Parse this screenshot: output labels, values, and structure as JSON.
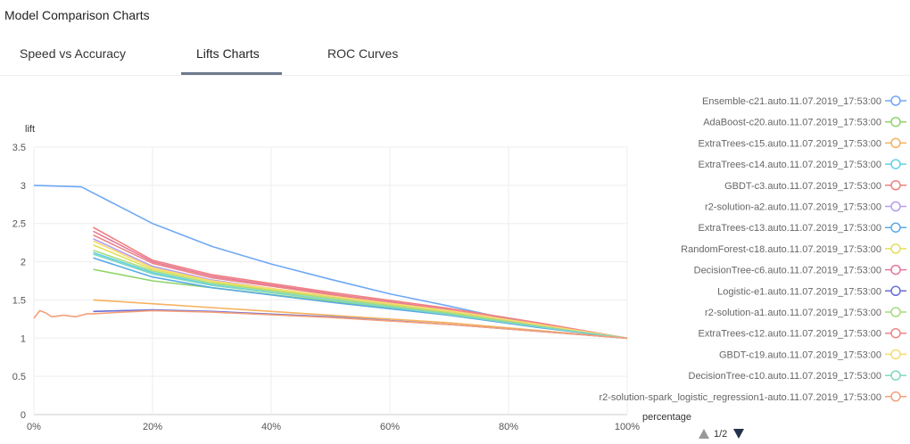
{
  "page": {
    "title": "Model Comparison Charts"
  },
  "tabs": [
    {
      "label": "Speed vs Accuracy",
      "active": false
    },
    {
      "label": "Lifts Charts",
      "active": true
    },
    {
      "label": "ROC Curves",
      "active": false
    }
  ],
  "chart_data": {
    "type": "line",
    "xlabel": "percentage",
    "ylabel": "lift",
    "xlim": [
      0,
      1
    ],
    "ylim": [
      0,
      3.5
    ],
    "x_ticks": [
      "0%",
      "20%",
      "40%",
      "60%",
      "80%",
      "100%"
    ],
    "y_ticks": [
      "0",
      "0.5",
      "1",
      "1.5",
      "2",
      "2.5",
      "3",
      "3.5"
    ],
    "grid": true,
    "legend_position": "right",
    "series": [
      {
        "name": "Ensemble-c21.auto.11.07.2019_17:53:00",
        "color": "#6fa8f5",
        "x": [
          0,
          0.08,
          0.1,
          0.15,
          0.2,
          0.3,
          0.4,
          0.5,
          0.6,
          0.7,
          0.8,
          0.9,
          1.0
        ],
        "y": [
          3.0,
          2.98,
          2.9,
          2.7,
          2.5,
          2.2,
          1.97,
          1.77,
          1.58,
          1.42,
          1.25,
          1.1,
          1.0
        ]
      },
      {
        "name": "AdaBoost-c20.auto.11.07.2019_17:53:00",
        "color": "#8fd46a",
        "x": [
          0.1,
          0.2,
          0.3,
          0.5,
          0.7,
          0.85,
          1.0
        ],
        "y": [
          1.9,
          1.75,
          1.66,
          1.48,
          1.3,
          1.15,
          1.0
        ]
      },
      {
        "name": "ExtraTrees-c15.auto.11.07.2019_17:53:00",
        "color": "#f5b25f",
        "x": [
          0.1,
          0.2,
          0.3,
          0.5,
          0.7,
          0.85,
          1.0
        ],
        "y": [
          1.5,
          1.45,
          1.4,
          1.3,
          1.2,
          1.1,
          1.0
        ]
      },
      {
        "name": "ExtraTrees-c14.auto.11.07.2019_17:53:00",
        "color": "#62d0e8",
        "x": [
          0.1,
          0.2,
          0.3,
          0.5,
          0.7,
          0.85,
          1.0
        ],
        "y": [
          2.12,
          1.86,
          1.7,
          1.5,
          1.32,
          1.15,
          1.0
        ]
      },
      {
        "name": "GBDT-c3.auto.11.07.2019_17:53:00",
        "color": "#f08080",
        "x": [
          0.1,
          0.2,
          0.3,
          0.5,
          0.7,
          0.85,
          1.0
        ],
        "y": [
          2.45,
          2.02,
          1.83,
          1.6,
          1.39,
          1.2,
          1.0
        ]
      },
      {
        "name": "r2-solution-a2.auto.11.07.2019_17:53:00",
        "color": "#b69cf0",
        "x": [
          0.1,
          0.2,
          0.3,
          0.5,
          0.7,
          0.85,
          1.0
        ],
        "y": [
          2.3,
          1.94,
          1.76,
          1.54,
          1.34,
          1.16,
          1.0
        ]
      },
      {
        "name": "ExtraTrees-c13.auto.11.07.2019_17:53:00",
        "color": "#5aa9e6",
        "x": [
          0.1,
          0.2,
          0.3,
          0.5,
          0.7,
          0.85,
          1.0
        ],
        "y": [
          2.05,
          1.8,
          1.66,
          1.47,
          1.3,
          1.14,
          1.0
        ]
      },
      {
        "name": "RandomForest-c18.auto.11.07.2019_17:53:00",
        "color": "#e3e05a",
        "x": [
          0.1,
          0.2,
          0.3,
          0.5,
          0.7,
          0.85,
          1.0
        ],
        "y": [
          2.22,
          1.9,
          1.74,
          1.53,
          1.34,
          1.16,
          1.0
        ]
      },
      {
        "name": "DecisionTree-c6.auto.11.07.2019_17:53:00",
        "color": "#e7769a",
        "x": [
          0.1,
          0.2,
          0.3,
          0.5,
          0.7,
          0.85,
          1.0
        ],
        "y": [
          2.4,
          2.0,
          1.81,
          1.58,
          1.37,
          1.18,
          1.0
        ]
      },
      {
        "name": "Logistic-e1.auto.11.07.2019_17:53:00",
        "color": "#6a6fd6",
        "x": [
          0.1,
          0.2,
          0.3,
          0.5,
          0.7,
          0.85,
          1.0
        ],
        "y": [
          1.35,
          1.37,
          1.35,
          1.28,
          1.18,
          1.09,
          1.0
        ]
      },
      {
        "name": "r2-solution-a1.auto.11.07.2019_17:53:00",
        "color": "#a8dc7c",
        "x": [
          0.1,
          0.2,
          0.3,
          0.5,
          0.7,
          0.85,
          1.0
        ],
        "y": [
          2.15,
          1.88,
          1.72,
          1.52,
          1.33,
          1.16,
          1.0
        ]
      },
      {
        "name": "ExtraTrees-c12.auto.11.07.2019_17:53:00",
        "color": "#ec8686",
        "x": [
          0.1,
          0.2,
          0.3,
          0.5,
          0.7,
          0.85,
          1.0
        ],
        "y": [
          2.35,
          1.98,
          1.79,
          1.57,
          1.36,
          1.18,
          1.0
        ]
      },
      {
        "name": "GBDT-c19.auto.11.07.2019_17:53:00",
        "color": "#f7dc6f",
        "x": [
          0.1,
          0.2,
          0.3,
          0.5,
          0.7,
          0.85,
          1.0
        ],
        "y": [
          2.27,
          1.92,
          1.75,
          1.55,
          1.36,
          1.18,
          1.0
        ]
      },
      {
        "name": "DecisionTree-c10.auto.11.07.2019_17:53:00",
        "color": "#7fd8c0",
        "x": [
          0.1,
          0.2,
          0.3,
          0.5,
          0.7,
          0.85,
          1.0
        ],
        "y": [
          2.1,
          1.84,
          1.69,
          1.5,
          1.31,
          1.15,
          1.0
        ]
      },
      {
        "name": "r2-solution-spark_logistic_regression1-auto.11.07.2019_17:53:00",
        "color": "#f4a07a",
        "x": [
          0,
          0.01,
          0.02,
          0.03,
          0.05,
          0.07,
          0.09,
          0.1,
          0.15,
          0.2,
          0.3,
          0.5,
          0.7,
          0.85,
          1.0
        ],
        "y": [
          1.26,
          1.36,
          1.33,
          1.28,
          1.3,
          1.28,
          1.32,
          1.32,
          1.34,
          1.36,
          1.34,
          1.27,
          1.18,
          1.09,
          1.0
        ]
      }
    ]
  },
  "legend": {
    "page_indicator": "1/2"
  }
}
